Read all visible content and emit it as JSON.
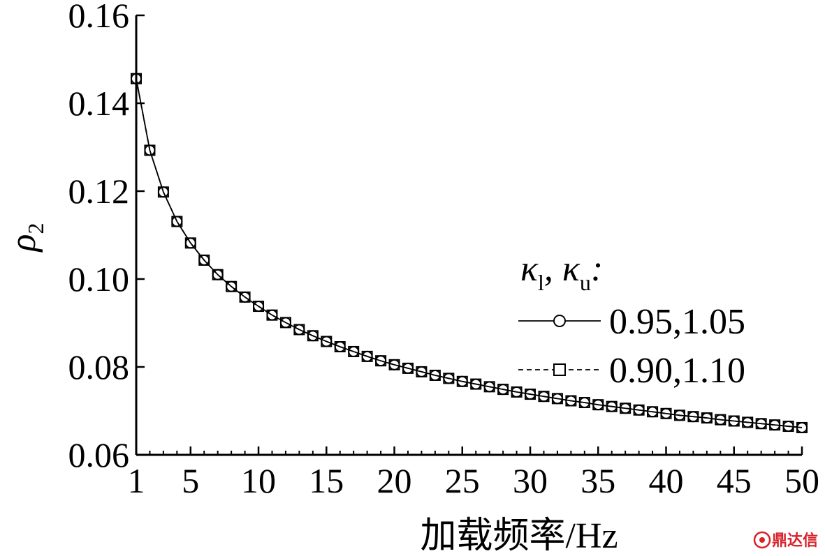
{
  "chart_data": {
    "type": "line",
    "xlabel": "加载频率/Hz",
    "ylabel": "ρ",
    "ylabel_subscript": "2",
    "xlim": [
      1,
      50
    ],
    "ylim": [
      0.06,
      0.16
    ],
    "xticks": [
      1,
      5,
      10,
      15,
      20,
      25,
      30,
      35,
      40,
      45,
      50
    ],
    "xtick_labels": [
      "1",
      "5",
      "10",
      "15",
      "20",
      "25",
      "30",
      "35",
      "40",
      "45",
      "50"
    ],
    "yticks": [
      0.06,
      0.08,
      0.1,
      0.12,
      0.14,
      0.16
    ],
    "ytick_labels": [
      "0.06",
      "0.08",
      "0.10",
      "0.12",
      "0.14",
      "0.16"
    ],
    "grid": false,
    "legend": {
      "placement": "right",
      "title_parts": [
        {
          "text": "κ",
          "sub": "l"
        },
        {
          "text": ", κ",
          "sub": "u"
        },
        {
          "text": ":",
          "sub": ""
        }
      ]
    },
    "x": [
      1,
      2,
      3,
      4,
      5,
      6,
      7,
      8,
      9,
      10,
      11,
      12,
      13,
      14,
      15,
      16,
      17,
      18,
      19,
      20,
      21,
      22,
      23,
      24,
      25,
      26,
      27,
      28,
      29,
      30,
      31,
      32,
      33,
      34,
      35,
      36,
      37,
      38,
      39,
      40,
      41,
      42,
      43,
      44,
      45,
      46,
      47,
      48,
      49,
      50
    ],
    "series": [
      {
        "name": "0.95,1.05",
        "line": "solid",
        "marker": "circle",
        "values": [
          0.1456,
          0.1293,
          0.1198,
          0.1131,
          0.1082,
          0.1043,
          0.101,
          0.0983,
          0.0959,
          0.0938,
          0.0918,
          0.0901,
          0.0885,
          0.0871,
          0.0858,
          0.0846,
          0.0835,
          0.0824,
          0.0814,
          0.0805,
          0.0797,
          0.0789,
          0.0781,
          0.0774,
          0.0767,
          0.0761,
          0.0755,
          0.0749,
          0.0743,
          0.0738,
          0.0733,
          0.0728,
          0.0723,
          0.0719,
          0.0714,
          0.071,
          0.0706,
          0.0702,
          0.0698,
          0.0694,
          0.069,
          0.0687,
          0.0684,
          0.068,
          0.0677,
          0.0674,
          0.0671,
          0.0668,
          0.0665,
          0.0662
        ]
      },
      {
        "name": "0.90,1.10",
        "line": "dashed",
        "marker": "square",
        "values": [
          0.1456,
          0.1293,
          0.1198,
          0.1131,
          0.1082,
          0.1043,
          0.101,
          0.0983,
          0.0959,
          0.0938,
          0.0918,
          0.0901,
          0.0885,
          0.0871,
          0.0858,
          0.0846,
          0.0835,
          0.0824,
          0.0814,
          0.0805,
          0.0797,
          0.0789,
          0.0781,
          0.0774,
          0.0767,
          0.0761,
          0.0755,
          0.0749,
          0.0743,
          0.0738,
          0.0733,
          0.0728,
          0.0723,
          0.0719,
          0.0714,
          0.071,
          0.0706,
          0.0702,
          0.0698,
          0.0694,
          0.069,
          0.0687,
          0.0684,
          0.068,
          0.0677,
          0.0674,
          0.0671,
          0.0668,
          0.0665,
          0.0662
        ]
      }
    ]
  },
  "watermark": {
    "text": "鼎达信",
    "color": "#d8232a"
  }
}
